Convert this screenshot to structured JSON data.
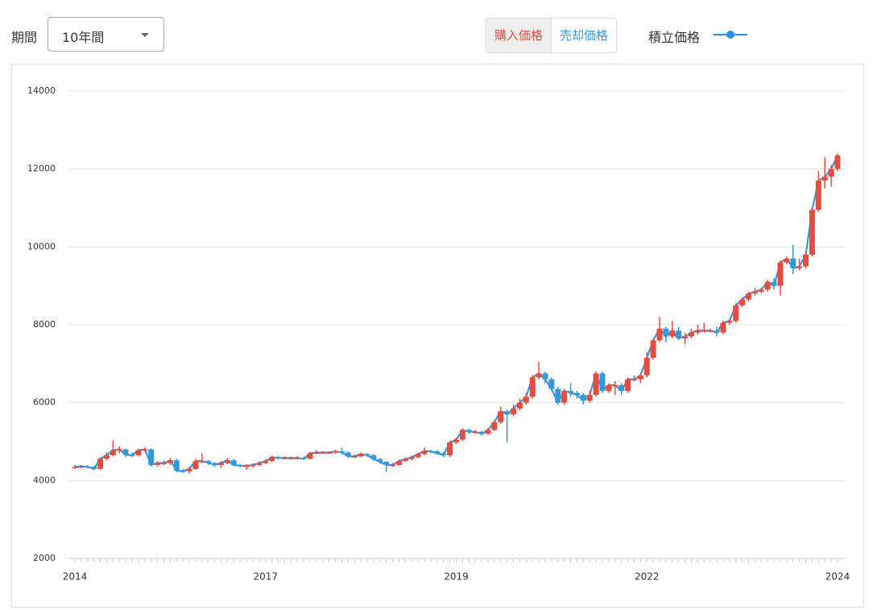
{
  "controls": {
    "period_label": "期間",
    "period_value": "10年間",
    "buy_label": "購入価格",
    "sell_label": "売却価格"
  },
  "chart_data": {
    "type": "candlestick",
    "categories": [
      "2014",
      null,
      null,
      null,
      null,
      null,
      null,
      null,
      null,
      null,
      null,
      null,
      null,
      null,
      null,
      null,
      null,
      null,
      null,
      null,
      null,
      null,
      null,
      null,
      null,
      null,
      null,
      null,
      null,
      null,
      "2017",
      null,
      null,
      null,
      null,
      null,
      null,
      null,
      null,
      null,
      null,
      null,
      null,
      null,
      null,
      null,
      null,
      null,
      null,
      null,
      null,
      null,
      null,
      null,
      null,
      null,
      null,
      null,
      null,
      null,
      "2019",
      null,
      null,
      null,
      null,
      null,
      null,
      null,
      null,
      null,
      null,
      null,
      null,
      null,
      null,
      null,
      null,
      null,
      null,
      null,
      null,
      null,
      null,
      null,
      null,
      null,
      null,
      null,
      null,
      null,
      "2022",
      null,
      null,
      null,
      null,
      null,
      null,
      null,
      null,
      null,
      null,
      null,
      null,
      null,
      null,
      null,
      null,
      null,
      null,
      null,
      null,
      null,
      null,
      null,
      null,
      null,
      null,
      null,
      null,
      null,
      "2024"
    ],
    "open": [
      4330,
      4350,
      4360,
      4350,
      4300,
      4560,
      4650,
      4780,
      4800,
      4660,
      4650,
      4780,
      4800,
      4400,
      4450,
      4450,
      4520,
      4250,
      4240,
      4300,
      4500,
      4500,
      4450,
      4400,
      4450,
      4520,
      4400,
      4380,
      4380,
      4400,
      4450,
      4500,
      4600,
      4580,
      4580,
      4580,
      4580,
      4560,
      4700,
      4720,
      4720,
      4720,
      4750,
      4720,
      4620,
      4620,
      4680,
      4650,
      4550,
      4480,
      4400,
      4400,
      4500,
      4550,
      4600,
      4680,
      4760,
      4750,
      4700,
      4650,
      4980,
      5050,
      5300,
      5250,
      5250,
      5200,
      5300,
      5500,
      5780,
      5700,
      5850,
      6000,
      6150,
      6650,
      6750,
      6600,
      6350,
      6000,
      6300,
      6250,
      6200,
      6050,
      6200,
      6750,
      6300,
      6450,
      6450,
      6300,
      6600,
      6600,
      6700,
      7150,
      7600,
      7900,
      7700,
      7850,
      7650,
      7700,
      7800,
      7850,
      7850,
      7850,
      7800,
      8050,
      8100,
      8500,
      8650,
      8800,
      8850,
      8900,
      9100,
      9000,
      9600,
      9700,
      9450,
      9500,
      9800,
      10950,
      11700,
      11800,
      12000
    ],
    "high": [
      4400,
      4400,
      4400,
      4370,
      4600,
      4720,
      5030,
      4880,
      4820,
      4720,
      4820,
      4850,
      4820,
      4500,
      4520,
      4580,
      4560,
      4300,
      4350,
      4560,
      4700,
      4530,
      4480,
      4500,
      4580,
      4550,
      4430,
      4420,
      4440,
      4490,
      4540,
      4640,
      4630,
      4620,
      4610,
      4620,
      4610,
      4740,
      4780,
      4760,
      4750,
      4790,
      4850,
      4750,
      4670,
      4720,
      4700,
      4680,
      4580,
      4500,
      4450,
      4540,
      4590,
      4640,
      4720,
      4850,
      4790,
      4780,
      4730,
      5020,
      5100,
      5350,
      5340,
      5300,
      5280,
      5350,
      5550,
      5900,
      5820,
      5950,
      6100,
      6250,
      6700,
      7050,
      6800,
      6650,
      6400,
      6350,
      6500,
      6300,
      6250,
      6300,
      6800,
      6800,
      6500,
      6550,
      6500,
      6650,
      6700,
      6750,
      7300,
      7650,
      8200,
      7950,
      8100,
      7950,
      7800,
      7900,
      8000,
      8050,
      7900,
      7950,
      8100,
      8150,
      8550,
      8700,
      8850,
      8950,
      8950,
      9150,
      9200,
      9650,
      9750,
      10050,
      9700,
      9850,
      11000,
      11950,
      12300,
      12100,
      12400
    ],
    "low": [
      4300,
      4320,
      4320,
      4260,
      4280,
      4520,
      4620,
      4700,
      4600,
      4600,
      4620,
      4740,
      4360,
      4360,
      4400,
      4400,
      4220,
      4200,
      4180,
      4280,
      4450,
      4400,
      4350,
      4320,
      4420,
      4370,
      4340,
      4280,
      4340,
      4370,
      4420,
      4470,
      4540,
      4550,
      4540,
      4550,
      4530,
      4540,
      4680,
      4690,
      4690,
      4690,
      4680,
      4580,
      4580,
      4600,
      4610,
      4500,
      4430,
      4220,
      4350,
      4380,
      4480,
      4520,
      4570,
      4650,
      4700,
      4660,
      4600,
      4600,
      4940,
      5020,
      5200,
      5200,
      5150,
      5170,
      5270,
      5460,
      4980,
      5650,
      5800,
      5950,
      6100,
      6600,
      6500,
      6300,
      5950,
      5950,
      6150,
      6100,
      5950,
      6000,
      6150,
      6250,
      6250,
      6200,
      6200,
      6250,
      6550,
      6500,
      6650,
      7100,
      7550,
      7550,
      7650,
      7600,
      7500,
      7650,
      7750,
      7800,
      7800,
      7700,
      7750,
      8000,
      8050,
      8450,
      8600,
      8750,
      8800,
      8850,
      8900,
      8750,
      9550,
      9300,
      9400,
      9450,
      9750,
      10900,
      11500,
      11550,
      11950
    ],
    "close": [
      4350,
      4360,
      4350,
      4300,
      4560,
      4650,
      4780,
      4800,
      4660,
      4650,
      4780,
      4800,
      4400,
      4450,
      4450,
      4520,
      4250,
      4240,
      4300,
      4500,
      4500,
      4450,
      4400,
      4450,
      4520,
      4400,
      4380,
      4380,
      4400,
      4450,
      4500,
      4600,
      4580,
      4580,
      4580,
      4580,
      4560,
      4700,
      4720,
      4720,
      4720,
      4750,
      4720,
      4620,
      4620,
      4680,
      4650,
      4550,
      4480,
      4400,
      4400,
      4500,
      4550,
      4600,
      4680,
      4760,
      4750,
      4700,
      4650,
      4980,
      5050,
      5300,
      5250,
      5250,
      5200,
      5300,
      5500,
      5780,
      5700,
      5850,
      6000,
      6150,
      6650,
      6750,
      6600,
      6350,
      6000,
      6300,
      6250,
      6200,
      6050,
      6200,
      6750,
      6300,
      6450,
      6450,
      6300,
      6600,
      6600,
      6700,
      7150,
      7600,
      7900,
      7700,
      7850,
      7650,
      7700,
      7800,
      7850,
      7850,
      7850,
      7800,
      8050,
      8100,
      8500,
      8650,
      8800,
      8850,
      8900,
      9100,
      9000,
      9600,
      9700,
      9450,
      9500,
      9800,
      10950,
      11700,
      11800,
      12000,
      12350
    ],
    "up_color": "#e74c3c",
    "down_color": "#3498db",
    "series": [
      {
        "name": "積立価格",
        "color": "#2f8fe0",
        "values": [
          4350,
          4360,
          4350,
          4300,
          4560,
          4650,
          4780,
          4800,
          4660,
          4650,
          4780,
          4800,
          4400,
          4450,
          4450,
          4520,
          4250,
          4240,
          4300,
          4500,
          4500,
          4450,
          4400,
          4450,
          4520,
          4400,
          4380,
          4380,
          4400,
          4450,
          4500,
          4600,
          4580,
          4580,
          4580,
          4580,
          4560,
          4700,
          4720,
          4720,
          4720,
          4750,
          4720,
          4620,
          4620,
          4680,
          4650,
          4550,
          4480,
          4400,
          4400,
          4500,
          4550,
          4600,
          4680,
          4760,
          4750,
          4700,
          4650,
          4980,
          5050,
          5300,
          5250,
          5250,
          5200,
          5300,
          5500,
          5780,
          5700,
          5850,
          6000,
          6150,
          6650,
          6750,
          6600,
          6350,
          6000,
          6300,
          6250,
          6200,
          6050,
          6200,
          6750,
          6300,
          6450,
          6450,
          6300,
          6600,
          6600,
          6700,
          7150,
          7600,
          7900,
          7700,
          7850,
          7650,
          7700,
          7800,
          7850,
          7850,
          7850,
          7800,
          8050,
          8100,
          8500,
          8650,
          8800,
          8850,
          8900,
          9100,
          9000,
          9600,
          9700,
          9450,
          9500,
          9800,
          10950,
          11700,
          11800,
          12000,
          12350
        ]
      }
    ],
    "ylim": [
      2000,
      14000
    ],
    "yticks": [
      2000,
      4000,
      6000,
      8000,
      10000,
      12000,
      14000
    ],
    "grid": true
  }
}
